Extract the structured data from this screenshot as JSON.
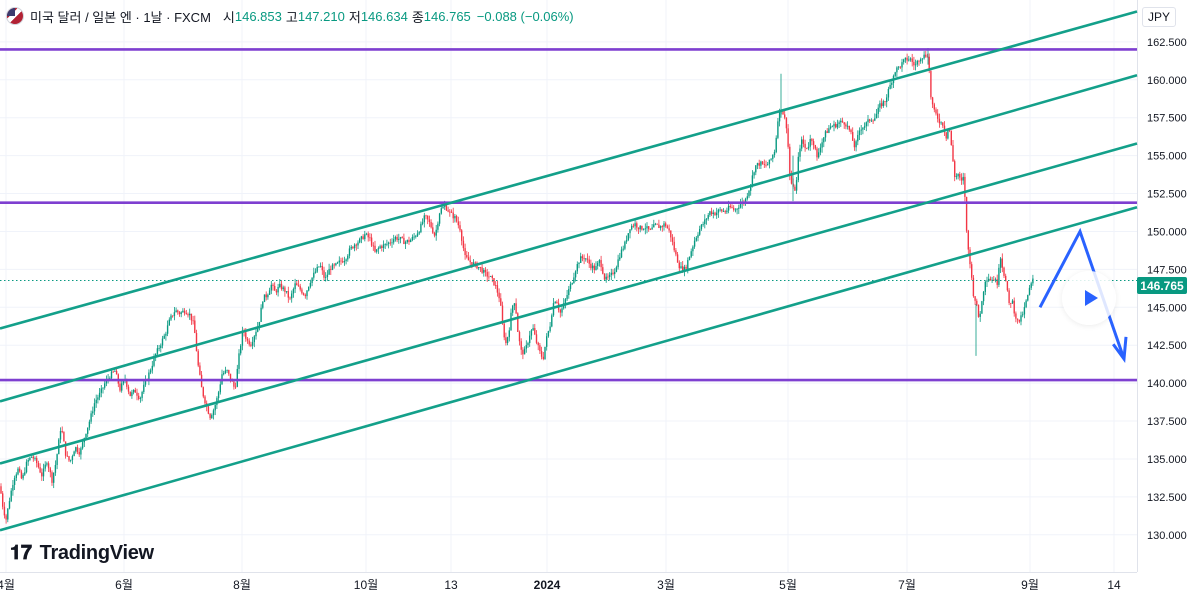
{
  "header": {
    "symbol": "미국 달러 / 일본 엔 · 1날 · FXCM",
    "open_label": "시",
    "open": "146.853",
    "high_label": "고",
    "high": "147.210",
    "low_label": "저",
    "low": "146.634",
    "close_label": "종",
    "close": "146.765",
    "change": "−0.088 (−0.06%)"
  },
  "currency_button": "JPY",
  "last_price": "146.765",
  "brand": "TradingView",
  "colors": {
    "up": "#089981",
    "down": "#f23645",
    "channel": "#13a08a",
    "level": "#7e3fd0",
    "arrow": "#2962ff",
    "grid": "#f0f3fa"
  },
  "chart_data": {
    "type": "candlestick",
    "ylim": [
      128.8,
      164.8
    ],
    "y_ticks": [
      "162.500",
      "160.000",
      "157.500",
      "155.000",
      "152.500",
      "150.000",
      "147.500",
      "145.000",
      "142.500",
      "140.000",
      "137.500",
      "135.000",
      "132.500",
      "130.000"
    ],
    "x_ticks": [
      "4월",
      "6월",
      "8월",
      "10월",
      "13",
      "2024",
      "3월",
      "5월",
      "7월",
      "9월",
      "14"
    ],
    "horizontal_levels": [
      162.0,
      151.9,
      140.2
    ],
    "close_path": [
      [
        0,
        133.2
      ],
      [
        3,
        131.8
      ],
      [
        6,
        131.0
      ],
      [
        10,
        132.5
      ],
      [
        14,
        133.8
      ],
      [
        18,
        134.3
      ],
      [
        22,
        133.6
      ],
      [
        27,
        134.8
      ],
      [
        32,
        135.2
      ],
      [
        37,
        134.7
      ],
      [
        42,
        133.9
      ],
      [
        47,
        134.9
      ],
      [
        52,
        133.6
      ],
      [
        56,
        134.8
      ],
      [
        61,
        137.2
      ],
      [
        66,
        135.2
      ],
      [
        70,
        134.8
      ],
      [
        75,
        135.8
      ],
      [
        80,
        135.4
      ],
      [
        85,
        136.6
      ],
      [
        90,
        137.6
      ],
      [
        95,
        138.8
      ],
      [
        100,
        139.3
      ],
      [
        105,
        140.0
      ],
      [
        110,
        140.5
      ],
      [
        115,
        140.8
      ],
      [
        120,
        139.6
      ],
      [
        125,
        140.3
      ],
      [
        130,
        139.2
      ],
      [
        135,
        139.5
      ],
      [
        140,
        139.0
      ],
      [
        145,
        140.0
      ],
      [
        150,
        140.8
      ],
      [
        155,
        141.8
      ],
      [
        160,
        142.5
      ],
      [
        165,
        143.2
      ],
      [
        170,
        144.2
      ],
      [
        175,
        144.8
      ],
      [
        180,
        144.6
      ],
      [
        185,
        144.8
      ],
      [
        190,
        144.5
      ],
      [
        194,
        143.8
      ],
      [
        198,
        141.2
      ],
      [
        202,
        139.5
      ],
      [
        206,
        138.6
      ],
      [
        210,
        137.8
      ],
      [
        214,
        138.3
      ],
      [
        218,
        139.2
      ],
      [
        222,
        140.6
      ],
      [
        227,
        140.8
      ],
      [
        231,
        140.2
      ],
      [
        235,
        139.6
      ],
      [
        239,
        141.8
      ],
      [
        243,
        143.6
      ],
      [
        247,
        142.8
      ],
      [
        251,
        142.6
      ],
      [
        255,
        143.3
      ],
      [
        259,
        144.0
      ],
      [
        263,
        145.6
      ],
      [
        267,
        145.8
      ],
      [
        271,
        146.5
      ],
      [
        275,
        146.0
      ],
      [
        280,
        146.4
      ],
      [
        285,
        146.1
      ],
      [
        290,
        145.5
      ],
      [
        295,
        146.5
      ],
      [
        300,
        146.2
      ],
      [
        305,
        145.8
      ],
      [
        310,
        146.7
      ],
      [
        315,
        147.3
      ],
      [
        320,
        147.8
      ],
      [
        325,
        146.8
      ],
      [
        330,
        147.6
      ],
      [
        335,
        147.7
      ],
      [
        340,
        148.0
      ],
      [
        345,
        148.2
      ],
      [
        350,
        148.8
      ],
      [
        355,
        149.2
      ],
      [
        360,
        149.4
      ],
      [
        365,
        149.8
      ],
      [
        370,
        149.5
      ],
      [
        375,
        148.6
      ],
      [
        380,
        149.0
      ],
      [
        385,
        149.1
      ],
      [
        390,
        149.3
      ],
      [
        395,
        149.6
      ],
      [
        400,
        149.5
      ],
      [
        405,
        149.3
      ],
      [
        410,
        149.4
      ],
      [
        415,
        149.7
      ],
      [
        420,
        150.2
      ],
      [
        425,
        151.0
      ],
      [
        430,
        150.5
      ],
      [
        435,
        149.7
      ],
      [
        440,
        151.4
      ],
      [
        445,
        151.7
      ],
      [
        450,
        151.2
      ],
      [
        455,
        150.9
      ],
      [
        460,
        150.2
      ],
      [
        465,
        148.3
      ],
      [
        470,
        148.0
      ],
      [
        475,
        147.8
      ],
      [
        480,
        147.6
      ],
      [
        485,
        147.2
      ],
      [
        490,
        147.0
      ],
      [
        495,
        146.5
      ],
      [
        500,
        145.5
      ],
      [
        503,
        143.5
      ],
      [
        506,
        142.6
      ],
      [
        509,
        143.5
      ],
      [
        512,
        145.0
      ],
      [
        515,
        145.5
      ],
      [
        518,
        143.3
      ],
      [
        521,
        142.1
      ],
      [
        524,
        142.0
      ],
      [
        527,
        142.5
      ],
      [
        530,
        143.3
      ],
      [
        533,
        143.6
      ],
      [
        536,
        142.8
      ],
      [
        540,
        142.0
      ],
      [
        543,
        141.6
      ],
      [
        546,
        142.8
      ],
      [
        550,
        143.8
      ],
      [
        553,
        145.2
      ],
      [
        556,
        145.6
      ],
      [
        560,
        144.6
      ],
      [
        564,
        145.2
      ],
      [
        568,
        146.0
      ],
      [
        572,
        146.7
      ],
      [
        576,
        147.6
      ],
      [
        580,
        148.2
      ],
      [
        585,
        148.3
      ],
      [
        590,
        147.8
      ],
      [
        595,
        147.5
      ],
      [
        600,
        148.1
      ],
      [
        605,
        146.8
      ],
      [
        610,
        147.0
      ],
      [
        615,
        147.5
      ],
      [
        620,
        148.5
      ],
      [
        625,
        149.2
      ],
      [
        630,
        150.3
      ],
      [
        635,
        150.5
      ],
      [
        640,
        150.2
      ],
      [
        645,
        150.3
      ],
      [
        650,
        150.0
      ],
      [
        655,
        150.4
      ],
      [
        660,
        150.3
      ],
      [
        665,
        150.5
      ],
      [
        670,
        149.9
      ],
      [
        675,
        148.6
      ],
      [
        680,
        147.6
      ],
      [
        685,
        147.5
      ],
      [
        690,
        148.5
      ],
      [
        695,
        149.5
      ],
      [
        700,
        150.2
      ],
      [
        705,
        150.7
      ],
      [
        710,
        151.3
      ],
      [
        715,
        151.2
      ],
      [
        720,
        151.4
      ],
      [
        725,
        151.3
      ],
      [
        730,
        151.6
      ],
      [
        735,
        151.4
      ],
      [
        740,
        151.8
      ],
      [
        745,
        152.0
      ],
      [
        750,
        153.0
      ],
      [
        755,
        154.3
      ],
      [
        760,
        154.5
      ],
      [
        765,
        154.3
      ],
      [
        770,
        154.6
      ],
      [
        775,
        155.4
      ],
      [
        778,
        157.5
      ],
      [
        781,
        158.2
      ],
      [
        784,
        157.6
      ],
      [
        787,
        156.8
      ],
      [
        790,
        153.5
      ],
      [
        793,
        152.8
      ],
      [
        796,
        152.8
      ],
      [
        799,
        155.4
      ],
      [
        802,
        156.0
      ],
      [
        805,
        155.5
      ],
      [
        808,
        155.6
      ],
      [
        811,
        156.2
      ],
      [
        814,
        155.8
      ],
      [
        817,
        154.8
      ],
      [
        820,
        155.6
      ],
      [
        825,
        156.4
      ],
      [
        830,
        156.9
      ],
      [
        835,
        157.0
      ],
      [
        840,
        157.2
      ],
      [
        845,
        157.2
      ],
      [
        850,
        156.6
      ],
      [
        855,
        155.5
      ],
      [
        860,
        156.8
      ],
      [
        865,
        157.0
      ],
      [
        870,
        157.4
      ],
      [
        875,
        157.5
      ],
      [
        880,
        158.3
      ],
      [
        885,
        158.6
      ],
      [
        890,
        159.6
      ],
      [
        895,
        160.6
      ],
      [
        900,
        160.9
      ],
      [
        905,
        161.3
      ],
      [
        910,
        161.4
      ],
      [
        915,
        160.9
      ],
      [
        920,
        161.5
      ],
      [
        925,
        161.6
      ],
      [
        928,
        161.7
      ],
      [
        931,
        158.8
      ],
      [
        934,
        157.9
      ],
      [
        937,
        157.6
      ],
      [
        940,
        157.2
      ],
      [
        943,
        157.1
      ],
      [
        946,
        156.2
      ],
      [
        949,
        157.0
      ],
      [
        952,
        155.2
      ],
      [
        955,
        153.5
      ],
      [
        958,
        153.8
      ],
      [
        961,
        153.2
      ],
      [
        964,
        153.6
      ],
      [
        967,
        149.4
      ],
      [
        970,
        148.0
      ],
      [
        973,
        146.0
      ],
      [
        976,
        145.3
      ],
      [
        979,
        144.2
      ],
      [
        982,
        145.4
      ],
      [
        985,
        146.8
      ],
      [
        988,
        147.0
      ],
      [
        991,
        146.8
      ],
      [
        994,
        146.9
      ],
      [
        997,
        146.5
      ],
      [
        1000,
        148.5
      ],
      [
        1003,
        147.5
      ],
      [
        1006,
        146.6
      ],
      [
        1009,
        145.2
      ],
      [
        1012,
        145.5
      ],
      [
        1015,
        144.5
      ],
      [
        1018,
        144.0
      ],
      [
        1021,
        144.3
      ],
      [
        1024,
        144.8
      ],
      [
        1027,
        145.6
      ],
      [
        1030,
        146.3
      ],
      [
        1033,
        146.8
      ]
    ],
    "trend_channel_lines": [
      {
        "x": [
          0,
          1137
        ],
        "y": [
          143.6,
          164.5
        ]
      },
      {
        "x": [
          0,
          1137
        ],
        "y": [
          138.8,
          160.3
        ]
      },
      {
        "x": [
          0,
          1137
        ],
        "y": [
          134.7,
          155.8
        ]
      },
      {
        "x": [
          0,
          1137
        ],
        "y": [
          130.3,
          151.6
        ]
      }
    ],
    "forecast_arrow": [
      [
        1040,
        145.0
      ],
      [
        1080,
        150.0
      ],
      [
        1124,
        141.6
      ]
    ]
  }
}
